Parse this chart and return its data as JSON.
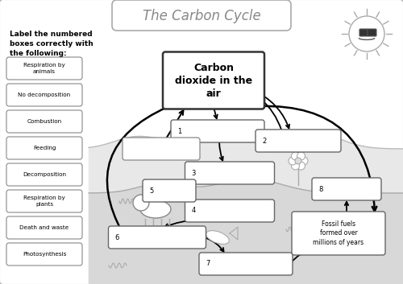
{
  "title": "The Carbon Cycle",
  "bg_color": "#ffffff",
  "instruction_text": "Label the numbered\nboxes correctly with\nthe following:",
  "label_items": [
    "Respiration by\nanimals",
    "No decomposition",
    "Combustion",
    "Feeding",
    "Decomposition",
    "Respiration by\nplants",
    "Death and waste",
    "Photosynthesis"
  ],
  "center_box_text": "Carbon\ndioxide in the\nair",
  "fossil_fuels_text": "Fossil fuels\nformed over\nmillions of years"
}
